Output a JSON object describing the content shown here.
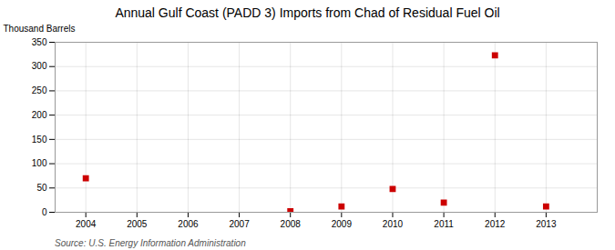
{
  "chart_data": {
    "type": "scatter",
    "title": "Annual Gulf Coast (PADD 3) Imports from Chad of Residual Fuel Oil",
    "ylabel": "Thousand Barrels",
    "annotations": [
      "Source: U.S. Energy Information Administration"
    ],
    "x": [
      2004,
      2008,
      2009,
      2010,
      2011,
      2012,
      2013
    ],
    "values": [
      70,
      2,
      12,
      48,
      20,
      323,
      12
    ],
    "color": "#cc0000",
    "marker": "square",
    "xlim": [
      2003.4,
      2014.0
    ],
    "ylim": [
      0,
      350
    ],
    "xticks": [
      2004,
      2005,
      2006,
      2007,
      2008,
      2009,
      2010,
      2011,
      2012,
      2013
    ],
    "yticks": [
      0,
      50,
      100,
      150,
      200,
      250,
      300,
      350
    ],
    "grid": true
  }
}
